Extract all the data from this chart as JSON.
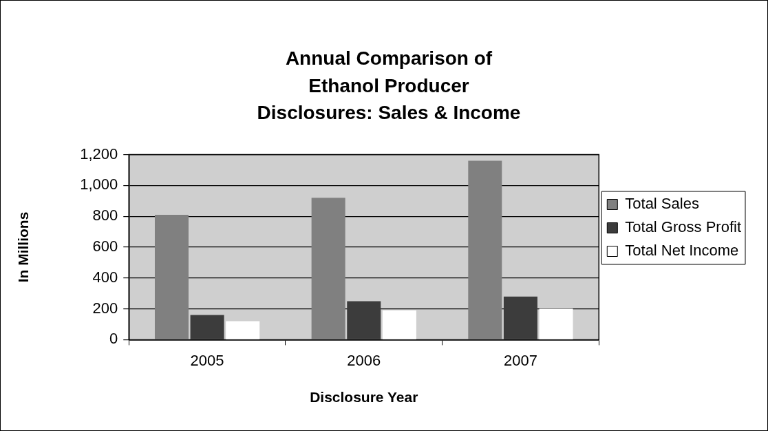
{
  "chart_data": {
    "type": "bar",
    "title": "Annual Comparison of Ethanol Producer Disclosures: Sales & Income",
    "xlabel": "Disclosure Year",
    "ylabel": "In Millions",
    "categories": [
      "2005",
      "2006",
      "2007"
    ],
    "series": [
      {
        "name": "Total Sales",
        "color": "#808080",
        "values": [
          810,
          920,
          1160
        ]
      },
      {
        "name": "Total Gross Profit",
        "color": "#3c3c3c",
        "values": [
          160,
          250,
          280
        ]
      },
      {
        "name": "Total Net Income",
        "color": "#ffffff",
        "values": [
          120,
          190,
          200
        ]
      }
    ],
    "ylim": [
      0,
      1200
    ],
    "yticks": [
      {
        "value": 0,
        "label": "0"
      },
      {
        "value": 200,
        "label": "200"
      },
      {
        "value": 400,
        "label": "400"
      },
      {
        "value": 600,
        "label": "600"
      },
      {
        "value": 800,
        "label": "800"
      },
      {
        "value": 1000,
        "label": "1,000"
      },
      {
        "value": 1200,
        "label": "1,200"
      }
    ],
    "grid": "y",
    "legend": "right"
  }
}
